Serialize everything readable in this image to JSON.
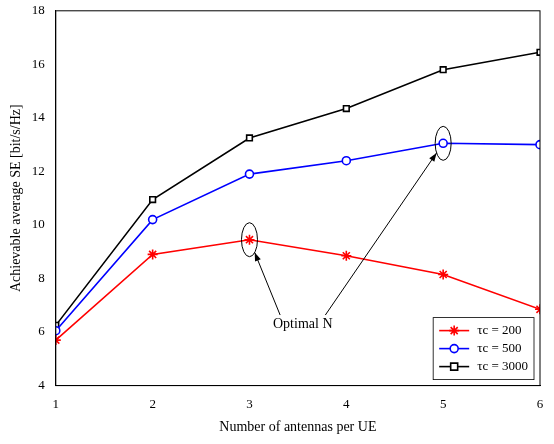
{
  "chart_data": {
    "type": "line",
    "x_label": "Number of antennas per UE",
    "y_label": "Achievable average SE [bit/s/Hz]",
    "x": [
      1,
      2,
      3,
      4,
      5,
      6
    ],
    "xlim": [
      1,
      6
    ],
    "xticks": [
      1,
      2,
      3,
      4,
      5,
      6
    ],
    "ylim": [
      4,
      18
    ],
    "yticks": [
      4,
      6,
      8,
      10,
      12,
      14,
      16,
      18
    ],
    "grid": false,
    "legend": "lower right",
    "series": [
      {
        "name": "τc = 200",
        "color": "#ff0000",
        "marker": "star",
        "line_style": "solid",
        "values": [
          5.7,
          8.9,
          9.45,
          8.85,
          8.15,
          6.85
        ]
      },
      {
        "name": "τc = 500",
        "color": "#0000ff",
        "marker": "circle",
        "line_style": "solid",
        "values": [
          6.05,
          10.2,
          11.9,
          12.4,
          13.05,
          13.0
        ]
      },
      {
        "name": "τc = 3000",
        "color": "#000000",
        "marker": "square",
        "line_style": "solid",
        "values": [
          6.25,
          10.95,
          13.25,
          14.35,
          15.8,
          16.45
        ]
      }
    ],
    "annotations": [
      {
        "text": "Optimal N",
        "x": 3.55,
        "y": 6.3,
        "targets": [
          {
            "series": "τc = 200",
            "x": 3
          },
          {
            "series": "τc = 500",
            "x": 5
          }
        ]
      }
    ]
  }
}
